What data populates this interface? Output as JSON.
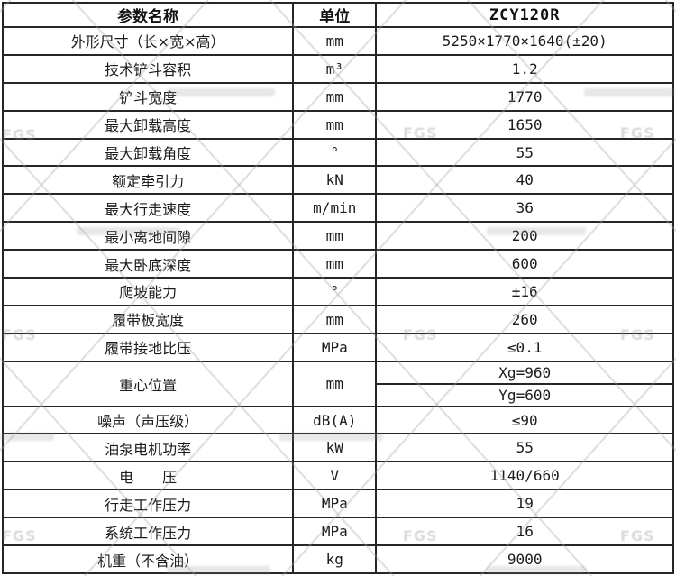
{
  "chart_data": {
    "type": "table",
    "columns": [
      "参数名称",
      "单位",
      "ZCY120R"
    ],
    "rows": [
      {
        "name": "外形尺寸（长×宽×高）",
        "unit": "mm",
        "value": "5250×1770×1640(±20)"
      },
      {
        "name": "技术铲斗容积",
        "unit": "m³",
        "value": "1.2"
      },
      {
        "name": "铲斗宽度",
        "unit": "mm",
        "value": "1770"
      },
      {
        "name": "最大卸载高度",
        "unit": "mm",
        "value": "1650"
      },
      {
        "name": "最大卸载角度",
        "unit": "°",
        "value": "55"
      },
      {
        "name": "额定牵引力",
        "unit": "kN",
        "value": "40"
      },
      {
        "name": "最大行走速度",
        "unit": "m/min",
        "value": "36"
      },
      {
        "name": "最小离地间隙",
        "unit": "mm",
        "value": "200"
      },
      {
        "name": "最大卧底深度",
        "unit": "mm",
        "value": "600"
      },
      {
        "name": "爬坡能力",
        "unit": "°",
        "value": "±16"
      },
      {
        "name": "履带板宽度",
        "unit": "mm",
        "value": "260"
      },
      {
        "name": "履带接地比压",
        "unit": "MPa",
        "value": "≤0.1"
      },
      {
        "name": "重心位置",
        "unit": "mm",
        "values": [
          "Xg=960",
          "Yg=600"
        ]
      },
      {
        "name": "噪声（声压级）",
        "unit": "dB(A)",
        "value": "≤90"
      },
      {
        "name": "油泵电机功率",
        "unit": "kW",
        "value": "55"
      },
      {
        "name": "电　　压",
        "unit": "V",
        "value": "1140/660"
      },
      {
        "name": "行走工作压力",
        "unit": "MPa",
        "value": "19"
      },
      {
        "name": "系统工作压力",
        "unit": "MPa",
        "value": "16"
      },
      {
        "name": "机重（不含油）",
        "unit": "kg",
        "value": "9000"
      }
    ]
  },
  "watermark": {
    "mark_label": "FGS"
  },
  "colors": {
    "border": "#262626",
    "text": "#1b1b1b",
    "watermark": "#a5a5a5"
  }
}
